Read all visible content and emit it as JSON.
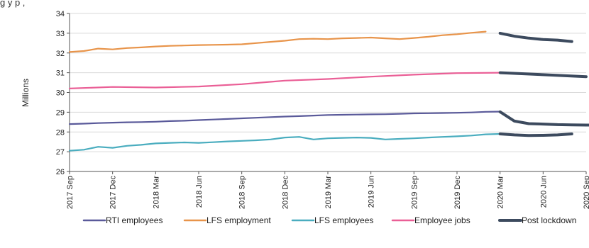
{
  "header_fragment": "g        y p     ,",
  "chart_data": {
    "type": "line",
    "title": "",
    "xlabel": "",
    "ylabel": "Millions",
    "ylim": [
      26,
      34
    ],
    "yticks": [
      26,
      27,
      28,
      29,
      30,
      31,
      32,
      33,
      34
    ],
    "xticks": [
      "2017 Sep",
      "2017 Dec",
      "2018 Mar",
      "2018 Jun",
      "2018 Sep",
      "2018 Dec",
      "2019 Mar",
      "2019 Jun",
      "2019 Sep",
      "2019 Dec",
      "2020 Mar",
      "2020 Jun",
      "2020 Sep"
    ],
    "grid": "horizontal",
    "legend_position": "bottom",
    "series": [
      {
        "name": "RTI employees",
        "color": "#5a5a9a",
        "x": [
          0,
          1,
          2,
          3,
          4,
          5,
          6,
          7,
          8,
          9,
          10,
          11,
          12,
          13,
          14,
          15,
          16,
          17,
          18,
          19,
          20,
          21,
          22,
          23,
          24,
          25,
          26,
          27,
          28,
          29,
          30
        ],
        "values": [
          28.4,
          28.42,
          28.45,
          28.47,
          28.49,
          28.5,
          28.52,
          28.55,
          28.57,
          28.6,
          28.63,
          28.66,
          28.69,
          28.72,
          28.75,
          28.78,
          28.8,
          28.83,
          28.86,
          28.87,
          28.88,
          28.89,
          28.9,
          28.92,
          28.94,
          28.95,
          28.96,
          28.97,
          28.99,
          29.02,
          29.03
        ]
      },
      {
        "name": "LFS employment",
        "color": "#e8944a",
        "x": [
          0,
          1,
          2,
          3,
          4,
          5,
          6,
          7,
          8,
          9,
          10,
          11,
          12,
          13,
          14,
          15,
          16,
          17,
          18,
          19,
          20,
          21,
          22,
          23,
          24,
          25,
          26,
          27,
          28,
          29
        ],
        "values": [
          32.05,
          32.1,
          32.22,
          32.18,
          32.25,
          32.28,
          32.33,
          32.36,
          32.38,
          32.4,
          32.41,
          32.42,
          32.44,
          32.5,
          32.56,
          32.62,
          32.7,
          32.72,
          32.7,
          32.74,
          32.76,
          32.78,
          32.74,
          32.7,
          32.76,
          32.82,
          32.9,
          32.95,
          33.02,
          33.08
        ]
      },
      {
        "name": "LFS employees",
        "color": "#4aadbf",
        "x": [
          0,
          1,
          2,
          3,
          4,
          5,
          6,
          7,
          8,
          9,
          10,
          11,
          12,
          13,
          14,
          15,
          16,
          17,
          18,
          19,
          20,
          21,
          22,
          23,
          24,
          25,
          26,
          27,
          28,
          29,
          30
        ],
        "values": [
          27.05,
          27.1,
          27.25,
          27.2,
          27.3,
          27.35,
          27.42,
          27.45,
          27.47,
          27.45,
          27.48,
          27.52,
          27.55,
          27.58,
          27.62,
          27.72,
          27.75,
          27.62,
          27.68,
          27.7,
          27.72,
          27.7,
          27.62,
          27.65,
          27.68,
          27.72,
          27.75,
          27.78,
          27.82,
          27.88,
          27.9
        ]
      },
      {
        "name": "Employee jobs",
        "color": "#ea5f96",
        "x": [
          0,
          3,
          6,
          9,
          12,
          15,
          18,
          21,
          24,
          27,
          30
        ],
        "values": [
          30.2,
          30.28,
          30.25,
          30.3,
          30.42,
          30.6,
          30.68,
          30.8,
          30.9,
          30.98,
          31.0
        ]
      },
      {
        "name": "Post lockdown",
        "color": "#3c4a5e",
        "segments": [
          {
            "x": [
              30,
              31,
              32,
              33,
              34,
              35
            ],
            "values": [
              33.0,
              32.85,
              32.75,
              32.68,
              32.65,
              32.58
            ]
          },
          {
            "x": [
              30,
              33,
              36
            ],
            "values": [
              31.0,
              30.9,
              30.8
            ]
          },
          {
            "x": [
              30,
              31,
              32,
              33,
              34,
              35,
              36,
              37,
              38
            ],
            "values": [
              29.02,
              28.55,
              28.42,
              28.4,
              28.37,
              28.36,
              28.35,
              28.35,
              28.35
            ]
          },
          {
            "x": [
              30,
              31,
              32,
              33,
              34,
              35
            ],
            "values": [
              27.9,
              27.85,
              27.82,
              27.83,
              27.85,
              27.9
            ]
          }
        ]
      }
    ]
  }
}
